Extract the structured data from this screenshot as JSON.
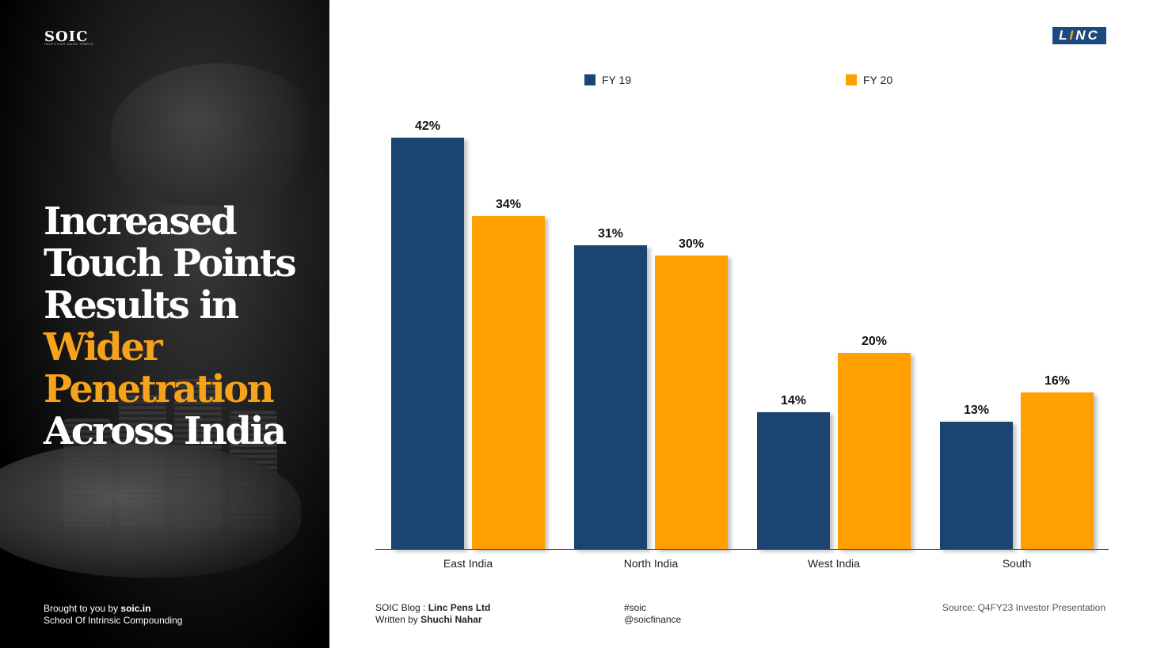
{
  "brand": {
    "soic_logo": "SOIC",
    "soic_tagline": "INVESTING MADE SIMPLE",
    "linc_logo_left": "L",
    "linc_logo_i": "I",
    "linc_logo_right": "NC"
  },
  "headline": {
    "line1": "Increased",
    "line2": "Touch Points",
    "line3": "Results in",
    "line4": "Wider",
    "line5": "Penetration",
    "line6": "Across India"
  },
  "footer": {
    "brought_prefix": "Brought to you by ",
    "brought_site": "soic.in",
    "brought_full": "School Of Intrinsic Compounding",
    "blog_prefix": "SOIC Blog : ",
    "blog_name": "Linc Pens Ltd",
    "written_prefix": "Written by ",
    "author": "Shuchi Nahar",
    "hashtag": "#soic",
    "handle": "@soicfinance",
    "source": "Source: Q4FY23 Investor Presentation"
  },
  "colors": {
    "fy19": "#1b4570",
    "fy20": "#ffa000",
    "accent": "#f7a21b"
  },
  "chart_data": {
    "type": "bar",
    "categories": [
      "East India",
      "North India",
      "West India",
      "South"
    ],
    "series": [
      {
        "name": "FY 19",
        "values": [
          42,
          31,
          14,
          13
        ],
        "labels": [
          "42%",
          "31%",
          "14%",
          "13%"
        ]
      },
      {
        "name": "FY 20",
        "values": [
          34,
          30,
          20,
          16
        ],
        "labels": [
          "34%",
          "30%",
          "20%",
          "16%"
        ]
      }
    ],
    "unit": "%",
    "ylim": [
      0,
      42
    ],
    "grid": false,
    "legend_position": "top"
  }
}
